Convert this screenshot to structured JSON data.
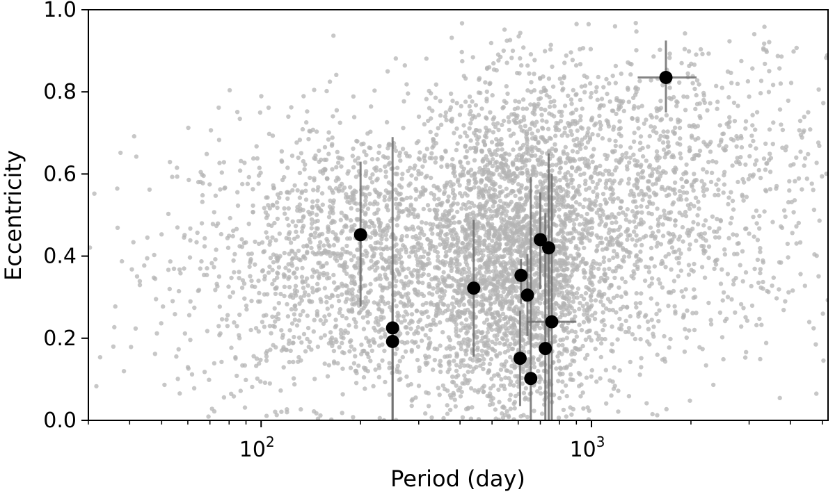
{
  "chart_data": {
    "type": "scatter",
    "title": "",
    "xlabel": "Period (day)",
    "ylabel": "Eccentricity",
    "xscale": "log",
    "xlim": [
      30,
      5200
    ],
    "ylim": [
      0.0,
      1.0
    ],
    "grid": false,
    "legend": "none",
    "x_ticks": [
      {
        "value": 100,
        "base": "10",
        "exp": "2"
      },
      {
        "value": 1000,
        "base": "10",
        "exp": "3"
      }
    ],
    "y_ticks": [
      {
        "value": 0.0,
        "label": "0.0"
      },
      {
        "value": 0.2,
        "label": "0.2"
      },
      {
        "value": 0.4,
        "label": "0.4"
      },
      {
        "value": 0.6,
        "label": "0.6"
      },
      {
        "value": 0.8,
        "label": "0.8"
      },
      {
        "value": 1.0,
        "label": "1.0"
      }
    ],
    "colors": {
      "background_points": "#b4b4b4",
      "highlight_points": "#000000",
      "error_bars": "#6e6e6e"
    },
    "background_population": {
      "description_count": 6000,
      "clusters": [
        {
          "logP_center": 2.35,
          "logP_sigma": 0.3,
          "ecc_center": 0.38,
          "ecc_sigma": 0.17,
          "weight": 0.35
        },
        {
          "logP_center": 2.77,
          "logP_sigma": 0.13,
          "ecc_center": 0.36,
          "ecc_sigma": 0.2,
          "weight": 0.35
        },
        {
          "logP_center": 3.1,
          "logP_sigma": 0.32,
          "ecc_center": 0.55,
          "ecc_sigma": 0.2,
          "weight": 0.3
        }
      ]
    },
    "series": [
      {
        "points": [
          {
            "x": 200,
            "y": 0.452,
            "yerr_low": 0.175,
            "yerr_high": 0.178,
            "x_low": 200,
            "x_high": 200
          },
          {
            "x": 250,
            "y": 0.225,
            "yerr_low": 0.225,
            "yerr_high": 0.465,
            "x_low": 250,
            "x_high": 250
          },
          {
            "x": 250,
            "y": 0.192,
            "yerr_low": 0.192,
            "yerr_high": 0.095,
            "x_low": 250,
            "x_high": 250
          },
          {
            "x": 440,
            "y": 0.322,
            "yerr_low": 0.167,
            "yerr_high": 0.166,
            "x_low": 440,
            "x_high": 440
          },
          {
            "x": 608,
            "y": 0.151,
            "yerr_low": 0.116,
            "yerr_high": 0.116,
            "x_low": 608,
            "x_high": 608
          },
          {
            "x": 612,
            "y": 0.353,
            "yerr_low": 0.07,
            "yerr_high": 0.04,
            "x_low": 612,
            "x_high": 612
          },
          {
            "x": 640,
            "y": 0.305,
            "yerr_low": 0.1,
            "yerr_high": 0.1,
            "x_low": 640,
            "x_high": 640
          },
          {
            "x": 655,
            "y": 0.102,
            "yerr_low": 0.102,
            "yerr_high": 0.49,
            "x_low": 655,
            "x_high": 655
          },
          {
            "x": 700,
            "y": 0.44,
            "yerr_low": 0.12,
            "yerr_high": 0.115,
            "x_low": 700,
            "x_high": 700
          },
          {
            "x": 725,
            "y": 0.175,
            "yerr_low": 0.175,
            "yerr_high": 0.33,
            "x_low": 725,
            "x_high": 725
          },
          {
            "x": 742,
            "y": 0.42,
            "yerr_low": 0.42,
            "yerr_high": 0.23,
            "x_low": 742,
            "x_high": 742
          },
          {
            "x": 758,
            "y": 0.24,
            "yerr_low": 0.24,
            "yerr_high": 0.36,
            "x_low": 640,
            "x_high": 900
          },
          {
            "x": 1680,
            "y": 0.835,
            "yerr_low": 0.085,
            "yerr_high": 0.09,
            "x_low": 1380,
            "x_high": 2080
          }
        ]
      }
    ]
  }
}
